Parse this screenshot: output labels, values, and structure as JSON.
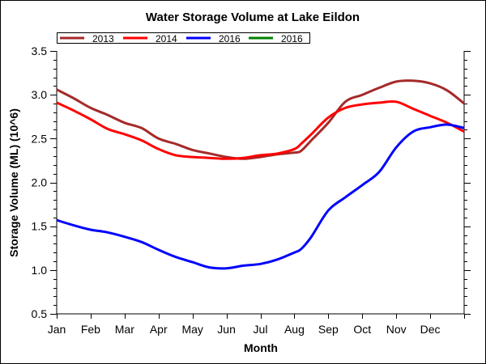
{
  "chart_data": {
    "type": "line",
    "title": "Water Storage Volume at Lake Eildon",
    "xlabel": "Month",
    "ylabel": "Storage Volume (ML) (10^6)",
    "xlim": [
      0,
      12
    ],
    "ylim": [
      0.5,
      3.5
    ],
    "x_ticks": [
      0,
      1,
      2,
      3,
      4,
      5,
      6,
      7,
      8,
      9,
      10,
      11,
      12
    ],
    "x_tick_labels": [
      "Jan",
      "Feb",
      "Mar",
      "Apr",
      "May",
      "Jun",
      "Jul",
      "Aug",
      "Sep",
      "Oct",
      "Nov",
      "Dec"
    ],
    "y_ticks": [
      0.5,
      1.0,
      1.5,
      2.0,
      2.5,
      3.0,
      3.5
    ],
    "y_tick_labels": [
      "0.5",
      "1.0",
      "1.5",
      "2.0",
      "2.5",
      "3.0",
      "3.5"
    ],
    "y_minor_step": 0.1,
    "grid": false,
    "legend_position": "top-left",
    "x": [
      0,
      0.5,
      1,
      1.5,
      2,
      2.5,
      3,
      3.5,
      4,
      4.5,
      5,
      5.5,
      6,
      6.5,
      7,
      7.2,
      7.5,
      8,
      8.5,
      9,
      9.5,
      10,
      10.5,
      11,
      11.5,
      12
    ],
    "series": [
      {
        "name": "2013",
        "color": "#a52a2a",
        "values": [
          3.06,
          2.96,
          2.85,
          2.77,
          2.68,
          2.62,
          2.5,
          2.44,
          2.37,
          2.33,
          2.29,
          2.27,
          2.29,
          2.32,
          2.34,
          2.36,
          2.48,
          2.68,
          2.92,
          3.0,
          3.08,
          3.15,
          3.16,
          3.13,
          3.05,
          2.9
        ]
      },
      {
        "name": "2014",
        "color": "#ff0000",
        "values": [
          2.91,
          2.82,
          2.72,
          2.61,
          2.55,
          2.48,
          2.38,
          2.31,
          2.29,
          2.28,
          2.27,
          2.28,
          2.31,
          2.33,
          2.38,
          2.44,
          2.55,
          2.74,
          2.85,
          2.89,
          2.91,
          2.92,
          2.84,
          2.76,
          2.68,
          2.58
        ]
      },
      {
        "name": "2016",
        "color": "#0000ff",
        "values": [
          1.57,
          1.51,
          1.46,
          1.43,
          1.38,
          1.32,
          1.23,
          1.15,
          1.09,
          1.03,
          1.02,
          1.05,
          1.07,
          1.12,
          1.2,
          1.24,
          1.38,
          1.68,
          1.83,
          1.97,
          2.12,
          2.4,
          2.58,
          2.63,
          2.66,
          2.62
        ]
      },
      {
        "name": "2016",
        "color": "#008000",
        "values": []
      }
    ]
  }
}
